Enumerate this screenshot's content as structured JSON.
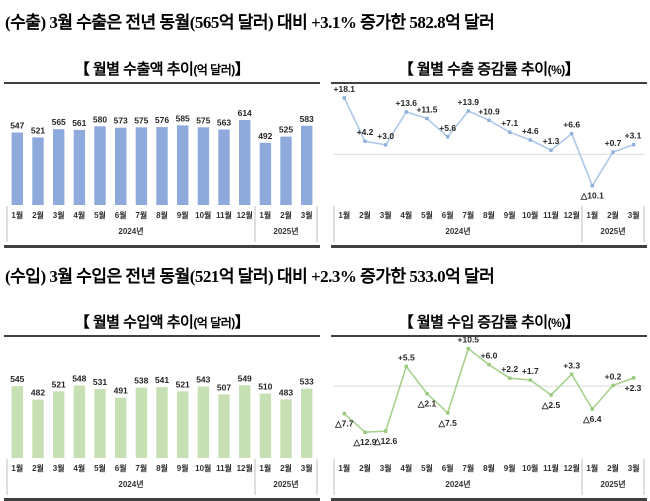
{
  "page": {
    "export_heading": "(수출) 3월 수출은 전년 동월(565억 달러) 대비 +3.1% 증가한 582.8억 달러",
    "import_heading": "(수입) 3월 수입은 전년 동월(521억 달러) 대비 +2.3% 증가한 533.0억 달러"
  },
  "colors": {
    "export_bar": "#8EA9DB",
    "export_line": "#AFC8E8",
    "import_bar": "#C6E0B4",
    "import_line": "#A9D18E",
    "border": "#404040",
    "axis_divider": "#BFBFBF",
    "zero_line": "#D9D9D9",
    "label_text": "#262626"
  },
  "chart_data": [
    {
      "id": "export-amount",
      "type": "bar",
      "title": {
        "main": "【 월별 수출액 추이",
        "unit": "(억 달러)",
        "close": " 】"
      },
      "categories": [
        "1월",
        "2월",
        "3월",
        "4월",
        "5월",
        "6월",
        "7월",
        "8월",
        "9월",
        "10월",
        "11월",
        "12월",
        "1월",
        "2월",
        "3월"
      ],
      "groups": [
        {
          "label": "2024년",
          "span": 12
        },
        {
          "label": "2025년",
          "span": 3
        }
      ],
      "values": [
        547,
        521,
        565,
        561,
        580,
        573,
        575,
        576,
        585,
        575,
        563,
        614,
        492,
        525,
        583
      ],
      "ylim": [
        160,
        710
      ],
      "grid": false,
      "legend": "none",
      "colors": {
        "bar": "#8EA9DB"
      }
    },
    {
      "id": "export-growth",
      "type": "line",
      "title": {
        "main": "【 월별 수출 증감률 추이",
        "unit": "(%)",
        "close": " 】"
      },
      "categories": [
        "1월",
        "2월",
        "3월",
        "4월",
        "5월",
        "6월",
        "7월",
        "8월",
        "9월",
        "10월",
        "11월",
        "12월",
        "1월",
        "2월",
        "3월"
      ],
      "groups": [
        {
          "label": "2024년",
          "span": 12
        },
        {
          "label": "2025년",
          "span": 3
        }
      ],
      "values": [
        18.1,
        4.2,
        3.0,
        13.6,
        11.5,
        5.6,
        13.9,
        10.9,
        7.1,
        4.6,
        1.3,
        6.6,
        -10.1,
        0.7,
        3.1
      ],
      "labels": [
        "+18.1",
        "+4.2",
        "+3.0",
        "+13.6",
        "+11.5",
        "+5.6",
        "+13.9",
        "+10.9",
        "+7.1",
        "+4.6",
        "+1.3",
        "+6.6",
        "△10.1",
        "+0.7",
        "+3.1"
      ],
      "label_below": [
        false,
        false,
        false,
        false,
        false,
        false,
        false,
        false,
        false,
        false,
        false,
        false,
        true,
        false,
        false
      ],
      "ylim": [
        -15,
        20
      ],
      "zero_line": true,
      "grid": false,
      "legend": "none",
      "colors": {
        "line": "#AFC8E8",
        "marker": "#8FAFDC"
      }
    },
    {
      "id": "import-amount",
      "type": "bar",
      "title": {
        "main": "【 월별 수입액 추이",
        "unit": "(억 달러)",
        "close": " 】"
      },
      "categories": [
        "1월",
        "2월",
        "3월",
        "4월",
        "5월",
        "6월",
        "7월",
        "8월",
        "9월",
        "10월",
        "11월",
        "12월",
        "1월",
        "2월",
        "3월"
      ],
      "groups": [
        {
          "label": "2024년",
          "span": 12
        },
        {
          "label": "2025년",
          "span": 3
        }
      ],
      "values": [
        545,
        482,
        521,
        548,
        531,
        491,
        538,
        541,
        521,
        543,
        507,
        549,
        510,
        483,
        533
      ],
      "ylim": [
        210,
        690
      ],
      "grid": false,
      "legend": "none",
      "colors": {
        "bar": "#C6E0B4"
      }
    },
    {
      "id": "import-growth",
      "type": "line",
      "title": {
        "main": "【 월별 수입 증감률 추이",
        "unit": "(%)",
        "close": " 】"
      },
      "categories": [
        "1월",
        "2월",
        "3월",
        "4월",
        "5월",
        "6월",
        "7월",
        "8월",
        "9월",
        "10월",
        "11월",
        "12월",
        "1월",
        "2월",
        "3월"
      ],
      "groups": [
        {
          "label": "2024년",
          "span": 12
        },
        {
          "label": "2025년",
          "span": 3
        }
      ],
      "values": [
        -7.7,
        -12.9,
        -12.6,
        5.5,
        -2.1,
        -7.5,
        10.5,
        6.0,
        2.2,
        1.7,
        -2.5,
        3.3,
        -6.4,
        0.2,
        2.3
      ],
      "labels": [
        "△7.7",
        "△12.9",
        "△12.6",
        "+5.5",
        "△2.1",
        "△7.5",
        "+10.5",
        "+6.0",
        "+2.2",
        "+1.7",
        "△2.5",
        "+3.3",
        "△6.4",
        "+0.2",
        "+2.3"
      ],
      "label_below": [
        true,
        true,
        true,
        false,
        true,
        true,
        false,
        false,
        false,
        false,
        true,
        false,
        true,
        false,
        true
      ],
      "ylim": [
        -19,
        11.5
      ],
      "zero_line": true,
      "grid": false,
      "legend": "none",
      "colors": {
        "line": "#A9D18E",
        "marker": "#97C97C"
      }
    }
  ]
}
